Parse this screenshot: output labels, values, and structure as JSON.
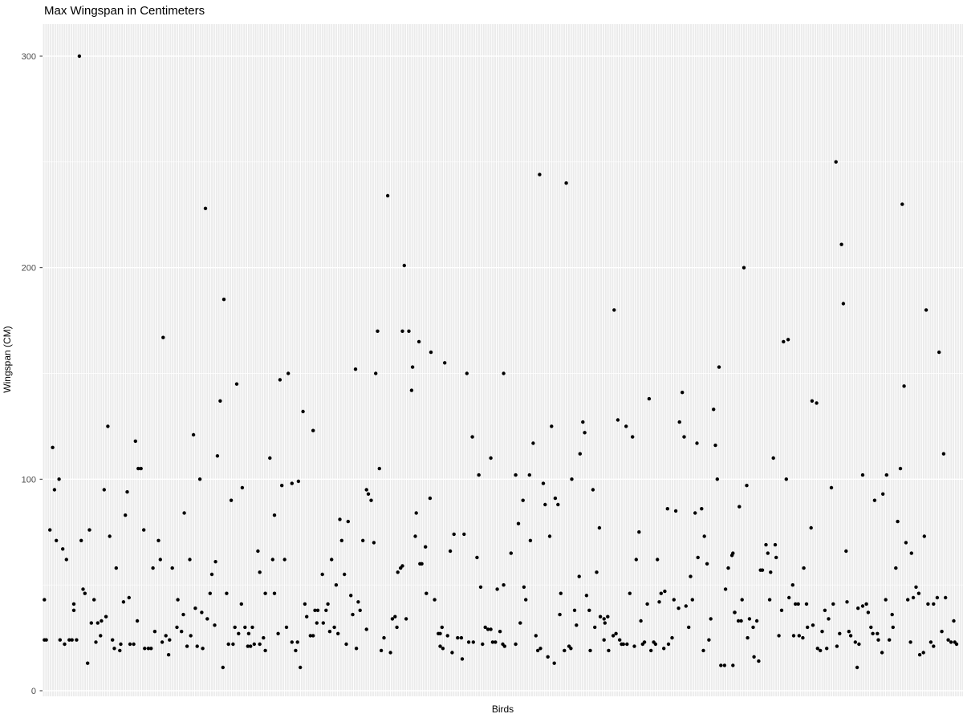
{
  "colors": {
    "panel_background": "#EBEBEB",
    "gridline": "#FFFFFF",
    "point": "#000000",
    "tick_label": "#4D4D4D",
    "tick_mark": "#333333",
    "axis_title": "#000000",
    "page_background": "#FFFFFF"
  },
  "chart_data": {
    "type": "scatter",
    "title": "Max Wingspan in Centimeters",
    "xlabel": "Birds",
    "ylabel": "Wingspan (CM)",
    "x_axis_type": "categorical-unlabeled-birds",
    "ylim": [
      0,
      315
    ],
    "y_ticks": [
      0,
      100,
      200,
      300
    ],
    "y_minor_gridlines": [
      50,
      150,
      250
    ],
    "grid": "vertical-stripe-per-category",
    "legend": "none",
    "points_format": "[x_fraction_along_birds_axis, max_wingspan_cm]",
    "points": [
      [
        0.04,
        300
      ],
      [
        0.54,
        244
      ],
      [
        0.569,
        240
      ],
      [
        0.862,
        250
      ],
      [
        0.177,
        228
      ],
      [
        0.197,
        185
      ],
      [
        0.131,
        167
      ],
      [
        0.375,
        234
      ],
      [
        0.393,
        201
      ],
      [
        0.364,
        170
      ],
      [
        0.391,
        170
      ],
      [
        0.398,
        170
      ],
      [
        0.409,
        165
      ],
      [
        0.422,
        160
      ],
      [
        0.621,
        180
      ],
      [
        0.934,
        230
      ],
      [
        0.868,
        211
      ],
      [
        0.762,
        200
      ],
      [
        0.87,
        183
      ],
      [
        0.96,
        180
      ],
      [
        0.805,
        165
      ],
      [
        0.81,
        166
      ],
      [
        0.974,
        160
      ],
      [
        0.211,
        145
      ],
      [
        0.193,
        137
      ],
      [
        0.071,
        125
      ],
      [
        0.164,
        121
      ],
      [
        0.101,
        118
      ],
      [
        0.011,
        115
      ],
      [
        0.19,
        111
      ],
      [
        0.247,
        110
      ],
      [
        0.104,
        105
      ],
      [
        0.107,
        105
      ],
      [
        0.171,
        100
      ],
      [
        0.018,
        100
      ],
      [
        0.013,
        95
      ],
      [
        0.067,
        95
      ],
      [
        0.092,
        94
      ],
      [
        0.217,
        96
      ],
      [
        0.205,
        90
      ],
      [
        0.154,
        84
      ],
      [
        0.09,
        83
      ],
      [
        0.267,
        150
      ],
      [
        0.258,
        147
      ],
      [
        0.34,
        152
      ],
      [
        0.362,
        150
      ],
      [
        0.402,
        153
      ],
      [
        0.437,
        155
      ],
      [
        0.461,
        150
      ],
      [
        0.501,
        150
      ],
      [
        0.401,
        142
      ],
      [
        0.283,
        132
      ],
      [
        0.294,
        123
      ],
      [
        0.467,
        120
      ],
      [
        0.487,
        110
      ],
      [
        0.366,
        105
      ],
      [
        0.474,
        102
      ],
      [
        0.26,
        97
      ],
      [
        0.271,
        98
      ],
      [
        0.278,
        99
      ],
      [
        0.352,
        95
      ],
      [
        0.354,
        93
      ],
      [
        0.357,
        90
      ],
      [
        0.421,
        91
      ],
      [
        0.406,
        84
      ],
      [
        0.323,
        81
      ],
      [
        0.332,
        80
      ],
      [
        0.252,
        83
      ],
      [
        0.735,
        153
      ],
      [
        0.695,
        141
      ],
      [
        0.659,
        138
      ],
      [
        0.729,
        133
      ],
      [
        0.625,
        128
      ],
      [
        0.587,
        127
      ],
      [
        0.692,
        127
      ],
      [
        0.634,
        125
      ],
      [
        0.553,
        125
      ],
      [
        0.589,
        122
      ],
      [
        0.641,
        120
      ],
      [
        0.697,
        120
      ],
      [
        0.533,
        117
      ],
      [
        0.711,
        117
      ],
      [
        0.731,
        116
      ],
      [
        0.584,
        112
      ],
      [
        0.514,
        102
      ],
      [
        0.529,
        102
      ],
      [
        0.575,
        100
      ],
      [
        0.733,
        100
      ],
      [
        0.544,
        98
      ],
      [
        0.598,
        95
      ],
      [
        0.522,
        90
      ],
      [
        0.557,
        91
      ],
      [
        0.546,
        88
      ],
      [
        0.56,
        88
      ],
      [
        0.679,
        86
      ],
      [
        0.688,
        85
      ],
      [
        0.709,
        84
      ],
      [
        0.716,
        86
      ],
      [
        0.517,
        79
      ],
      [
        0.936,
        144
      ],
      [
        0.836,
        137
      ],
      [
        0.841,
        136
      ],
      [
        0.794,
        110
      ],
      [
        0.979,
        112
      ],
      [
        0.932,
        105
      ],
      [
        0.891,
        102
      ],
      [
        0.917,
        102
      ],
      [
        0.808,
        100
      ],
      [
        0.765,
        97
      ],
      [
        0.857,
        96
      ],
      [
        0.913,
        93
      ],
      [
        0.904,
        90
      ],
      [
        0.757,
        87
      ],
      [
        0.929,
        80
      ],
      [
        0.835,
        77
      ],
      [
        0.008,
        76
      ],
      [
        0.051,
        76
      ],
      [
        0.11,
        76
      ],
      [
        0.015,
        71
      ],
      [
        0.042,
        71
      ],
      [
        0.073,
        73
      ],
      [
        0.126,
        71
      ],
      [
        0.022,
        67
      ],
      [
        0.026,
        62
      ],
      [
        0.128,
        62
      ],
      [
        0.16,
        62
      ],
      [
        0.188,
        61
      ],
      [
        0.234,
        66
      ],
      [
        0.25,
        62
      ],
      [
        0.08,
        58
      ],
      [
        0.12,
        58
      ],
      [
        0.141,
        58
      ],
      [
        0.236,
        56
      ],
      [
        0.184,
        55
      ],
      [
        0.044,
        48
      ],
      [
        0.046,
        46
      ],
      [
        0.002,
        43
      ],
      [
        0.056,
        43
      ],
      [
        0.034,
        41
      ],
      [
        0.094,
        44
      ],
      [
        0.088,
        42
      ],
      [
        0.034,
        38
      ],
      [
        0.182,
        46
      ],
      [
        0.2,
        46
      ],
      [
        0.242,
        46
      ],
      [
        0.147,
        43
      ],
      [
        0.216,
        41
      ],
      [
        0.166,
        39
      ],
      [
        0.153,
        36
      ],
      [
        0.173,
        37
      ],
      [
        0.179,
        34
      ],
      [
        0.053,
        32
      ],
      [
        0.06,
        32
      ],
      [
        0.064,
        33
      ],
      [
        0.069,
        35
      ],
      [
        0.103,
        33
      ],
      [
        0.187,
        31
      ],
      [
        0.146,
        30
      ],
      [
        0.209,
        30
      ],
      [
        0.22,
        30
      ],
      [
        0.228,
        30
      ],
      [
        0.213,
        27
      ],
      [
        0.224,
        27
      ],
      [
        0.122,
        28
      ],
      [
        0.063,
        26
      ],
      [
        0.134,
        26
      ],
      [
        0.138,
        24
      ],
      [
        0.151,
        28
      ],
      [
        0.161,
        26
      ],
      [
        0.002,
        24
      ],
      [
        0.004,
        24
      ],
      [
        0.019,
        24
      ],
      [
        0.024,
        22
      ],
      [
        0.029,
        24
      ],
      [
        0.032,
        24
      ],
      [
        0.037,
        24
      ],
      [
        0.058,
        23
      ],
      [
        0.076,
        24
      ],
      [
        0.078,
        20
      ],
      [
        0.084,
        19
      ],
      [
        0.085,
        22
      ],
      [
        0.095,
        22
      ],
      [
        0.099,
        22
      ],
      [
        0.111,
        20
      ],
      [
        0.115,
        20
      ],
      [
        0.118,
        20
      ],
      [
        0.13,
        23
      ],
      [
        0.137,
        17
      ],
      [
        0.157,
        21
      ],
      [
        0.168,
        21
      ],
      [
        0.174,
        20
      ],
      [
        0.202,
        22
      ],
      [
        0.207,
        22
      ],
      [
        0.223,
        21
      ],
      [
        0.226,
        21
      ],
      [
        0.23,
        22
      ],
      [
        0.236,
        22
      ],
      [
        0.24,
        25
      ],
      [
        0.242,
        19
      ],
      [
        0.049,
        13
      ],
      [
        0.196,
        11
      ],
      [
        0.263,
        62
      ],
      [
        0.325,
        71
      ],
      [
        0.348,
        71
      ],
      [
        0.36,
        70
      ],
      [
        0.314,
        62
      ],
      [
        0.304,
        55
      ],
      [
        0.328,
        55
      ],
      [
        0.319,
        50
      ],
      [
        0.405,
        73
      ],
      [
        0.416,
        68
      ],
      [
        0.443,
        66
      ],
      [
        0.447,
        74
      ],
      [
        0.458,
        74
      ],
      [
        0.472,
        63
      ],
      [
        0.386,
        56
      ],
      [
        0.389,
        58
      ],
      [
        0.391,
        59
      ],
      [
        0.41,
        60
      ],
      [
        0.412,
        60
      ],
      [
        0.252,
        46
      ],
      [
        0.417,
        46
      ],
      [
        0.426,
        43
      ],
      [
        0.476,
        49
      ],
      [
        0.494,
        48
      ],
      [
        0.501,
        50
      ],
      [
        0.335,
        45
      ],
      [
        0.343,
        42
      ],
      [
        0.345,
        38
      ],
      [
        0.337,
        36
      ],
      [
        0.285,
        41
      ],
      [
        0.31,
        41
      ],
      [
        0.296,
        38
      ],
      [
        0.299,
        38
      ],
      [
        0.308,
        38
      ],
      [
        0.287,
        35
      ],
      [
        0.298,
        32
      ],
      [
        0.305,
        32
      ],
      [
        0.265,
        30
      ],
      [
        0.256,
        27
      ],
      [
        0.271,
        23
      ],
      [
        0.277,
        23
      ],
      [
        0.275,
        19
      ],
      [
        0.28,
        11
      ],
      [
        0.291,
        26
      ],
      [
        0.294,
        26
      ],
      [
        0.312,
        28
      ],
      [
        0.317,
        30
      ],
      [
        0.321,
        27
      ],
      [
        0.33,
        22
      ],
      [
        0.341,
        20
      ],
      [
        0.352,
        29
      ],
      [
        0.368,
        19
      ],
      [
        0.371,
        25
      ],
      [
        0.378,
        18
      ],
      [
        0.38,
        34
      ],
      [
        0.383,
        35
      ],
      [
        0.385,
        30
      ],
      [
        0.395,
        34
      ],
      [
        0.43,
        27
      ],
      [
        0.432,
        27
      ],
      [
        0.434,
        30
      ],
      [
        0.44,
        26
      ],
      [
        0.432,
        21
      ],
      [
        0.435,
        20
      ],
      [
        0.445,
        18
      ],
      [
        0.451,
        25
      ],
      [
        0.455,
        25
      ],
      [
        0.456,
        15
      ],
      [
        0.463,
        23
      ],
      [
        0.468,
        23
      ],
      [
        0.478,
        22
      ],
      [
        0.481,
        30
      ],
      [
        0.484,
        29
      ],
      [
        0.487,
        29
      ],
      [
        0.489,
        23
      ],
      [
        0.492,
        23
      ],
      [
        0.497,
        28
      ],
      [
        0.5,
        22
      ],
      [
        0.605,
        77
      ],
      [
        0.648,
        75
      ],
      [
        0.551,
        73
      ],
      [
        0.53,
        71
      ],
      [
        0.719,
        73
      ],
      [
        0.509,
        65
      ],
      [
        0.645,
        62
      ],
      [
        0.668,
        62
      ],
      [
        0.712,
        63
      ],
      [
        0.722,
        60
      ],
      [
        0.745,
        58
      ],
      [
        0.749,
        64
      ],
      [
        0.602,
        56
      ],
      [
        0.583,
        54
      ],
      [
        0.704,
        54
      ],
      [
        0.523,
        49
      ],
      [
        0.525,
        43
      ],
      [
        0.563,
        46
      ],
      [
        0.591,
        45
      ],
      [
        0.672,
        46
      ],
      [
        0.676,
        47
      ],
      [
        0.638,
        46
      ],
      [
        0.742,
        48
      ],
      [
        0.686,
        43
      ],
      [
        0.657,
        41
      ],
      [
        0.67,
        42
      ],
      [
        0.691,
        39
      ],
      [
        0.699,
        40
      ],
      [
        0.706,
        43
      ],
      [
        0.562,
        36
      ],
      [
        0.578,
        38
      ],
      [
        0.594,
        38
      ],
      [
        0.606,
        35
      ],
      [
        0.61,
        34
      ],
      [
        0.614,
        35
      ],
      [
        0.611,
        32
      ],
      [
        0.58,
        31
      ],
      [
        0.6,
        30
      ],
      [
        0.519,
        32
      ],
      [
        0.65,
        33
      ],
      [
        0.726,
        34
      ],
      [
        0.702,
        30
      ],
      [
        0.536,
        26
      ],
      [
        0.514,
        22
      ],
      [
        0.502,
        21
      ],
      [
        0.538,
        19
      ],
      [
        0.541,
        20
      ],
      [
        0.549,
        16
      ],
      [
        0.556,
        13
      ],
      [
        0.567,
        19
      ],
      [
        0.572,
        21
      ],
      [
        0.574,
        20
      ],
      [
        0.595,
        19
      ],
      [
        0.61,
        24
      ],
      [
        0.615,
        19
      ],
      [
        0.62,
        26
      ],
      [
        0.623,
        27
      ],
      [
        0.627,
        24
      ],
      [
        0.629,
        22
      ],
      [
        0.631,
        22
      ],
      [
        0.635,
        22
      ],
      [
        0.643,
        21
      ],
      [
        0.652,
        22
      ],
      [
        0.654,
        23
      ],
      [
        0.664,
        23
      ],
      [
        0.666,
        22
      ],
      [
        0.661,
        19
      ],
      [
        0.675,
        20
      ],
      [
        0.68,
        22
      ],
      [
        0.684,
        25
      ],
      [
        0.718,
        19
      ],
      [
        0.724,
        24
      ],
      [
        0.737,
        12
      ],
      [
        0.741,
        12
      ],
      [
        0.752,
        37
      ],
      [
        0.958,
        73
      ],
      [
        0.938,
        70
      ],
      [
        0.786,
        69
      ],
      [
        0.796,
        69
      ],
      [
        0.788,
        65
      ],
      [
        0.797,
        63
      ],
      [
        0.75,
        65
      ],
      [
        0.873,
        66
      ],
      [
        0.944,
        65
      ],
      [
        0.927,
        58
      ],
      [
        0.78,
        57
      ],
      [
        0.782,
        57
      ],
      [
        0.791,
        56
      ],
      [
        0.827,
        58
      ],
      [
        0.815,
        50
      ],
      [
        0.76,
        43
      ],
      [
        0.79,
        43
      ],
      [
        0.811,
        44
      ],
      [
        0.818,
        41
      ],
      [
        0.821,
        41
      ],
      [
        0.83,
        41
      ],
      [
        0.803,
        38
      ],
      [
        0.752,
        37
      ],
      [
        0.756,
        33
      ],
      [
        0.759,
        33
      ],
      [
        0.768,
        34
      ],
      [
        0.772,
        30
      ],
      [
        0.776,
        33
      ],
      [
        0.766,
        25
      ],
      [
        0.773,
        16
      ],
      [
        0.778,
        14
      ],
      [
        0.75,
        12
      ],
      [
        0.8,
        26
      ],
      [
        0.816,
        26
      ],
      [
        0.822,
        26
      ],
      [
        0.826,
        25
      ],
      [
        0.831,
        30
      ],
      [
        0.837,
        31
      ],
      [
        0.847,
        28
      ],
      [
        0.842,
        20
      ],
      [
        0.845,
        19
      ],
      [
        0.852,
        20
      ],
      [
        0.863,
        21
      ],
      [
        0.85,
        38
      ],
      [
        0.854,
        34
      ],
      [
        0.859,
        41
      ],
      [
        0.866,
        27
      ],
      [
        0.874,
        42
      ],
      [
        0.876,
        28
      ],
      [
        0.878,
        26
      ],
      [
        0.883,
        23
      ],
      [
        0.887,
        22
      ],
      [
        0.885,
        11
      ],
      [
        0.886,
        39
      ],
      [
        0.891,
        40
      ],
      [
        0.895,
        41
      ],
      [
        0.897,
        37
      ],
      [
        0.9,
        30
      ],
      [
        0.902,
        27
      ],
      [
        0.907,
        27
      ],
      [
        0.908,
        24
      ],
      [
        0.912,
        18
      ],
      [
        0.916,
        43
      ],
      [
        0.92,
        24
      ],
      [
        0.923,
        36
      ],
      [
        0.924,
        30
      ],
      [
        0.94,
        43
      ],
      [
        0.946,
        44
      ],
      [
        0.943,
        23
      ],
      [
        0.949,
        49
      ],
      [
        0.952,
        46
      ],
      [
        0.953,
        17
      ],
      [
        0.957,
        18
      ],
      [
        0.962,
        41
      ],
      [
        0.968,
        41
      ],
      [
        0.965,
        23
      ],
      [
        0.968,
        21
      ],
      [
        0.972,
        44
      ],
      [
        0.977,
        28
      ],
      [
        0.981,
        44
      ],
      [
        0.984,
        24
      ],
      [
        0.987,
        23
      ],
      [
        0.991,
        23
      ],
      [
        0.99,
        33
      ],
      [
        0.993,
        22
      ]
    ]
  }
}
